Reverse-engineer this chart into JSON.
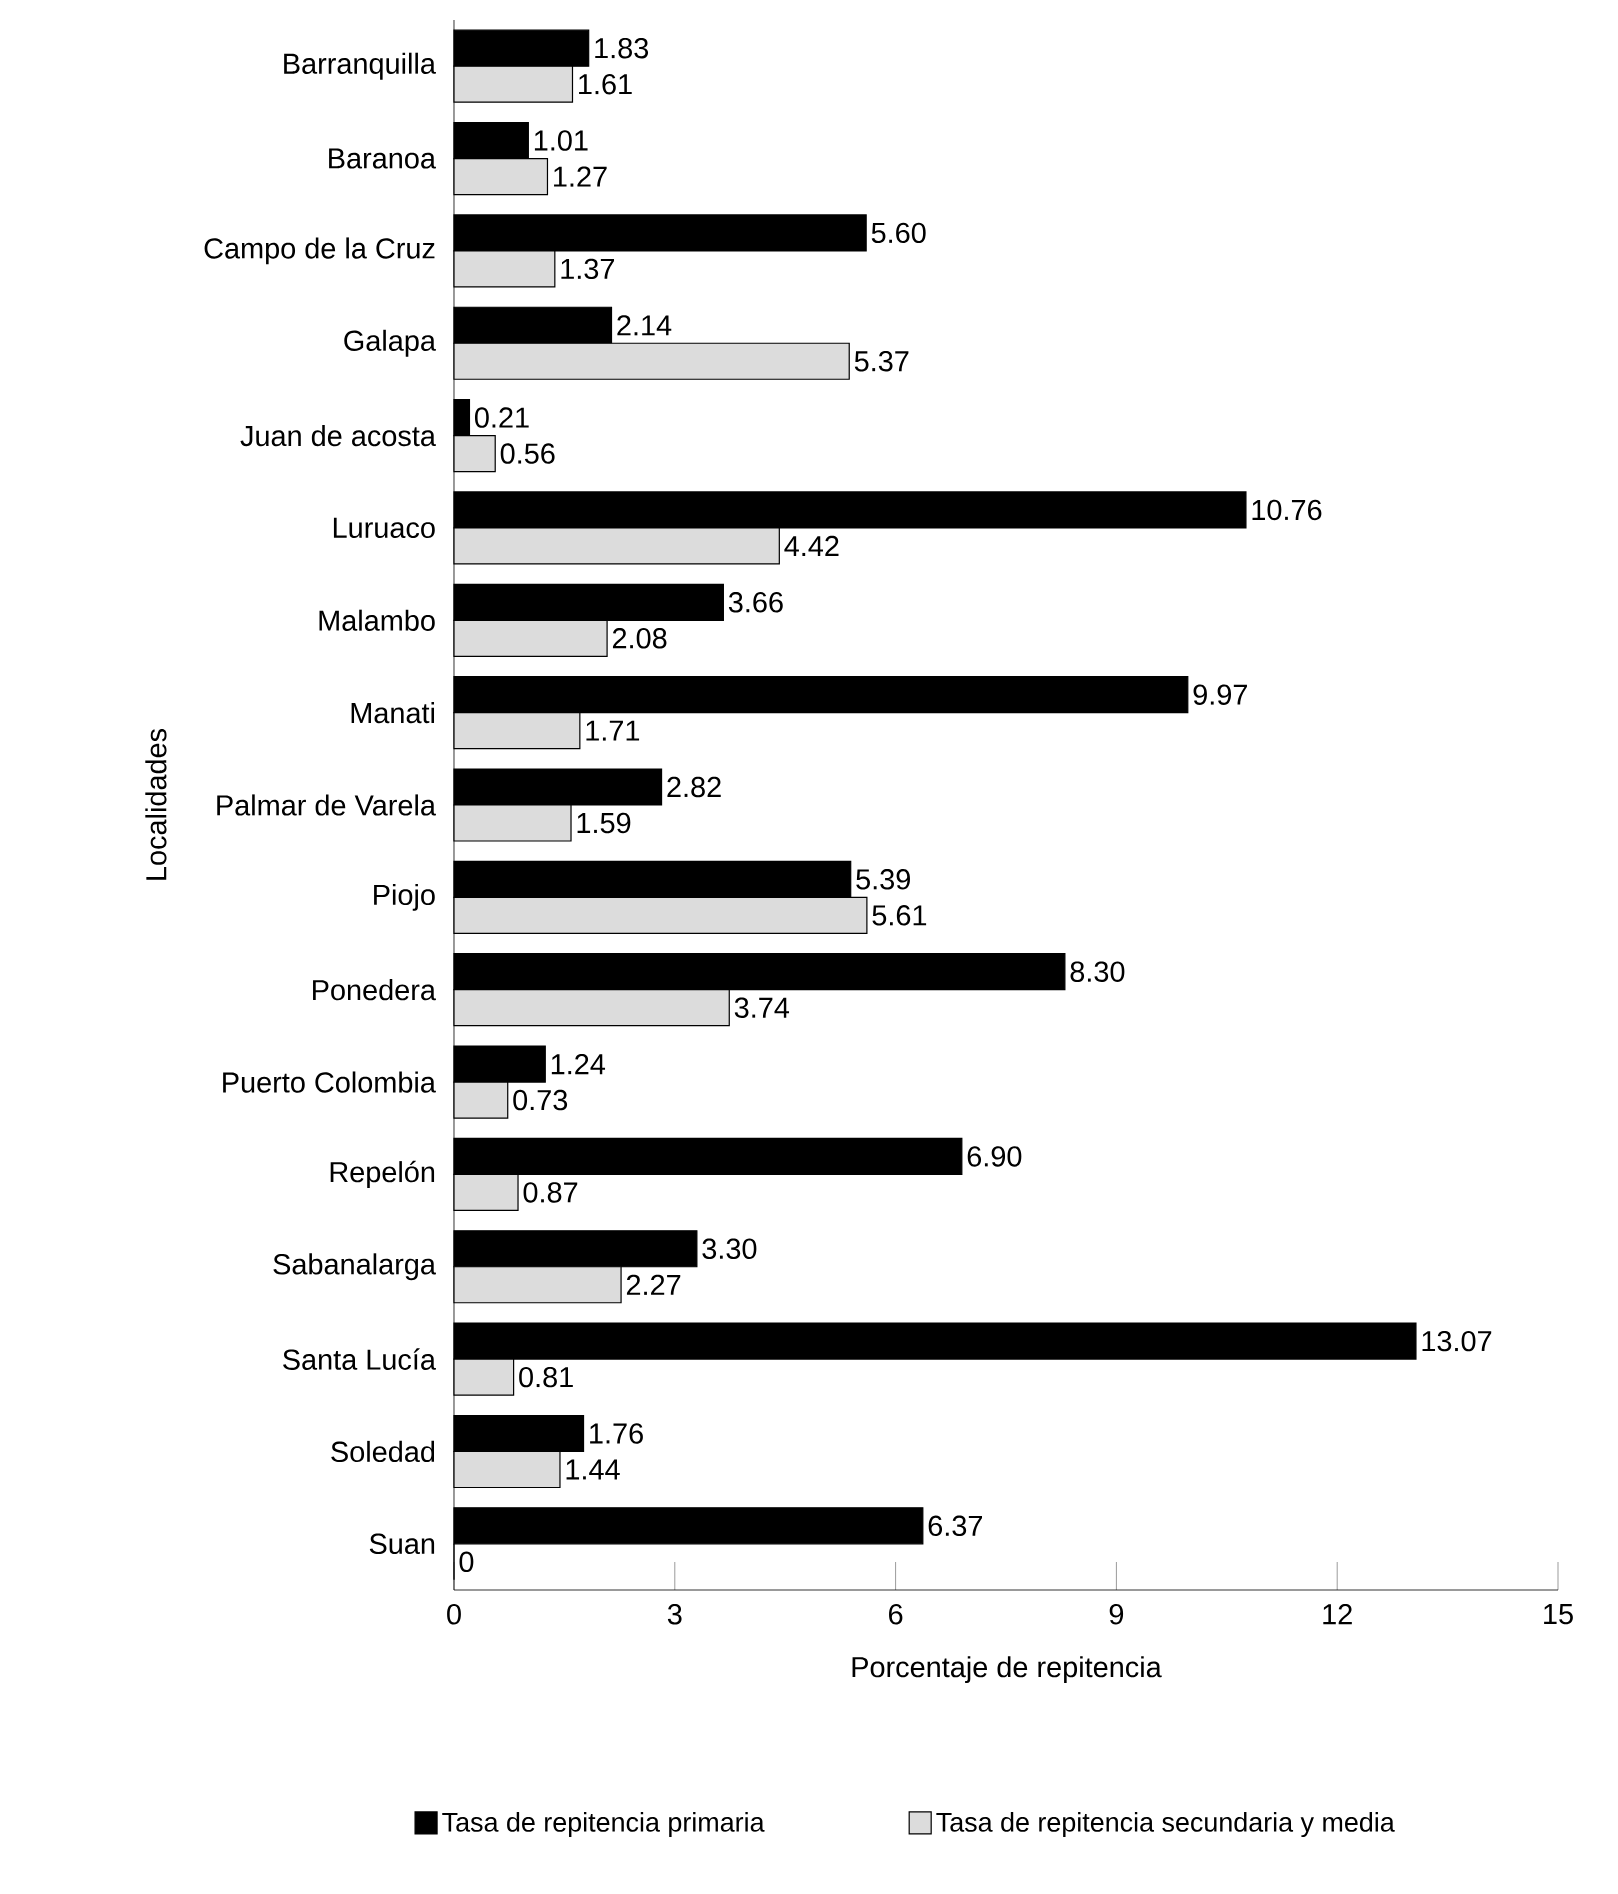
{
  "chart_data": {
    "type": "bar",
    "orientation": "horizontal",
    "xlabel": "Porcentaje de repitencia",
    "ylabel": "Localidades",
    "categories": [
      "Barranquilla",
      "Baranoa",
      "Campo de la Cruz",
      "Galapa",
      "Juan de acosta",
      "Luruaco",
      "Malambo",
      "Manati",
      "Palmar de Varela",
      "Piojo",
      "Ponedera",
      "Puerto Colombia",
      "Repelón",
      "Sabanalarga",
      "Santa Lucía",
      "Soledad",
      "Suan"
    ],
    "series": [
      {
        "name": "Tasa de repitencia primaria",
        "color": "#000000",
        "values": [
          1.83,
          1.01,
          5.6,
          2.14,
          0.21,
          10.76,
          3.66,
          9.97,
          2.82,
          5.39,
          8.3,
          1.24,
          6.9,
          3.3,
          13.07,
          1.76,
          6.37
        ],
        "value_labels": [
          "1.83",
          "1.01",
          "5.60",
          "2.14",
          "0.21",
          "10.76",
          "3.66",
          "9.97",
          "2.82",
          "5.39",
          "8.30",
          "1.24",
          "6.90",
          "3.30",
          "13.07",
          "1.76",
          "6.37"
        ]
      },
      {
        "name": "Tasa de repitencia secundaria y media",
        "color": "#dcdcdc",
        "values": [
          1.61,
          1.27,
          1.37,
          5.37,
          0.56,
          4.42,
          2.08,
          1.71,
          1.59,
          5.61,
          3.74,
          0.73,
          0.87,
          2.27,
          0.81,
          1.44,
          0
        ],
        "value_labels": [
          "1.61",
          "1.27",
          "1.37",
          "5.37",
          "0.56",
          "4.42",
          "2.08",
          "1.71",
          "1.59",
          "5.61",
          "3.74",
          "0.73",
          "0.87",
          "2.27",
          "0.81",
          "1.44",
          "0"
        ]
      }
    ],
    "xlim": [
      0,
      15
    ],
    "xticks": [
      0,
      3,
      6,
      9,
      12,
      15
    ],
    "grid": false,
    "legend": "bottom"
  }
}
